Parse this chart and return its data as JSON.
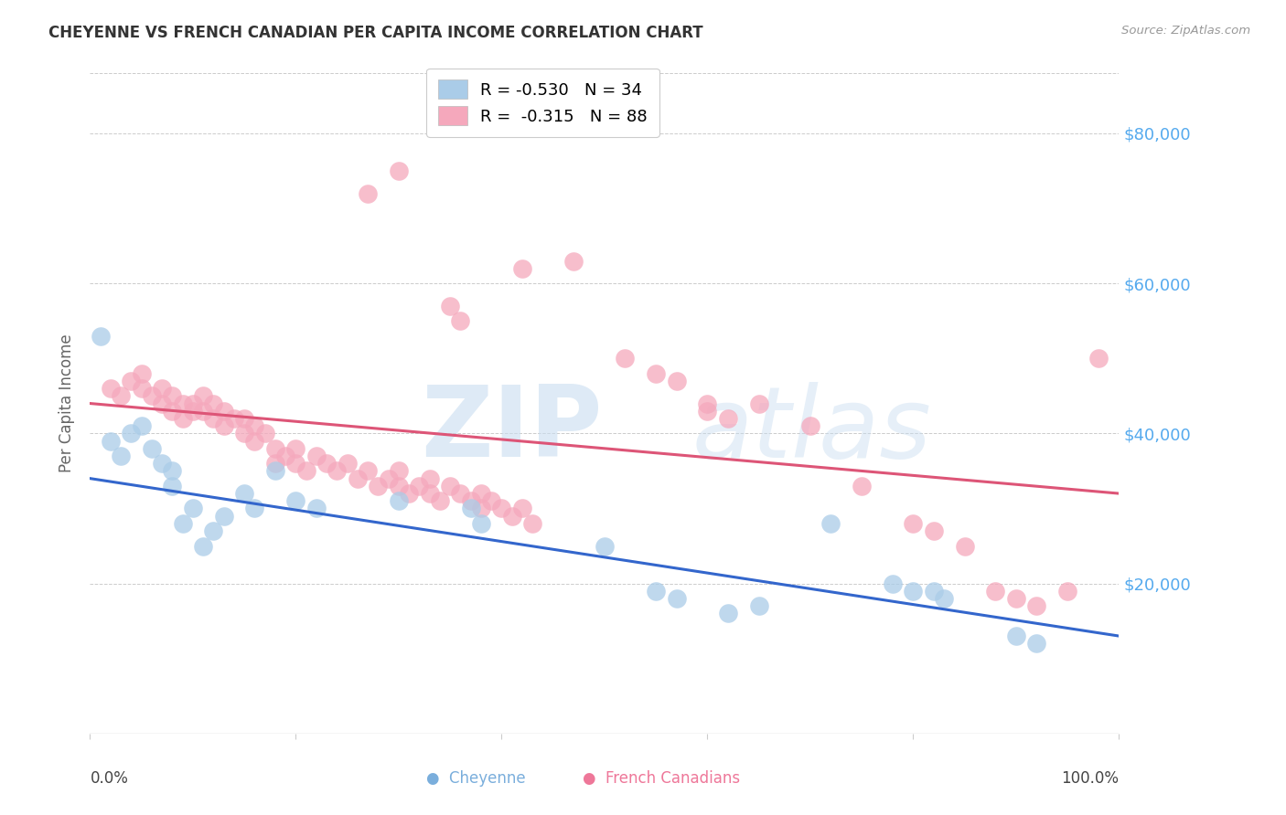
{
  "title": "CHEYENNE VS FRENCH CANADIAN PER CAPITA INCOME CORRELATION CHART",
  "source": "Source: ZipAtlas.com",
  "ylabel": "Per Capita Income",
  "ytick_labels": [
    "$20,000",
    "$40,000",
    "$60,000",
    "$80,000"
  ],
  "ytick_values": [
    20000,
    40000,
    60000,
    80000
  ],
  "ylim": [
    0,
    88000
  ],
  "xlim": [
    0,
    100
  ],
  "cheyenne_color": "#aacce8",
  "french_color": "#f5a8bc",
  "line_blue": "#3366cc",
  "line_pink": "#dd5577",
  "cheyenne_scatter": [
    [
      1,
      53000
    ],
    [
      2,
      39000
    ],
    [
      3,
      37000
    ],
    [
      4,
      40000
    ],
    [
      5,
      41000
    ],
    [
      6,
      38000
    ],
    [
      7,
      36000
    ],
    [
      8,
      33000
    ],
    [
      8,
      35000
    ],
    [
      9,
      28000
    ],
    [
      10,
      30000
    ],
    [
      11,
      25000
    ],
    [
      12,
      27000
    ],
    [
      13,
      29000
    ],
    [
      15,
      32000
    ],
    [
      16,
      30000
    ],
    [
      18,
      35000
    ],
    [
      20,
      31000
    ],
    [
      22,
      30000
    ],
    [
      30,
      31000
    ],
    [
      37,
      30000
    ],
    [
      38,
      28000
    ],
    [
      50,
      25000
    ],
    [
      55,
      19000
    ],
    [
      57,
      18000
    ],
    [
      62,
      16000
    ],
    [
      65,
      17000
    ],
    [
      72,
      28000
    ],
    [
      78,
      20000
    ],
    [
      80,
      19000
    ],
    [
      82,
      19000
    ],
    [
      83,
      18000
    ],
    [
      90,
      13000
    ],
    [
      92,
      12000
    ]
  ],
  "french_scatter": [
    [
      2,
      46000
    ],
    [
      3,
      45000
    ],
    [
      4,
      47000
    ],
    [
      5,
      48000
    ],
    [
      5,
      46000
    ],
    [
      6,
      45000
    ],
    [
      7,
      44000
    ],
    [
      7,
      46000
    ],
    [
      8,
      45000
    ],
    [
      8,
      43000
    ],
    [
      9,
      44000
    ],
    [
      9,
      42000
    ],
    [
      10,
      43000
    ],
    [
      10,
      44000
    ],
    [
      11,
      45000
    ],
    [
      11,
      43000
    ],
    [
      12,
      44000
    ],
    [
      12,
      42000
    ],
    [
      13,
      43000
    ],
    [
      13,
      41000
    ],
    [
      14,
      42000
    ],
    [
      15,
      40000
    ],
    [
      15,
      42000
    ],
    [
      16,
      41000
    ],
    [
      16,
      39000
    ],
    [
      17,
      40000
    ],
    [
      18,
      38000
    ],
    [
      18,
      36000
    ],
    [
      19,
      37000
    ],
    [
      20,
      38000
    ],
    [
      20,
      36000
    ],
    [
      21,
      35000
    ],
    [
      22,
      37000
    ],
    [
      23,
      36000
    ],
    [
      24,
      35000
    ],
    [
      25,
      36000
    ],
    [
      26,
      34000
    ],
    [
      27,
      35000
    ],
    [
      28,
      33000
    ],
    [
      29,
      34000
    ],
    [
      30,
      33000
    ],
    [
      30,
      35000
    ],
    [
      31,
      32000
    ],
    [
      32,
      33000
    ],
    [
      33,
      34000
    ],
    [
      33,
      32000
    ],
    [
      34,
      31000
    ],
    [
      35,
      33000
    ],
    [
      36,
      32000
    ],
    [
      37,
      31000
    ],
    [
      38,
      32000
    ],
    [
      38,
      30000
    ],
    [
      39,
      31000
    ],
    [
      40,
      30000
    ],
    [
      41,
      29000
    ],
    [
      42,
      30000
    ],
    [
      43,
      28000
    ],
    [
      27,
      72000
    ],
    [
      30,
      75000
    ],
    [
      35,
      57000
    ],
    [
      36,
      55000
    ],
    [
      42,
      62000
    ],
    [
      47,
      63000
    ],
    [
      52,
      50000
    ],
    [
      55,
      48000
    ],
    [
      57,
      47000
    ],
    [
      60,
      44000
    ],
    [
      60,
      43000
    ],
    [
      62,
      42000
    ],
    [
      65,
      44000
    ],
    [
      70,
      41000
    ],
    [
      75,
      33000
    ],
    [
      80,
      28000
    ],
    [
      82,
      27000
    ],
    [
      85,
      25000
    ],
    [
      88,
      19000
    ],
    [
      90,
      18000
    ],
    [
      92,
      17000
    ],
    [
      95,
      19000
    ],
    [
      98,
      50000
    ]
  ]
}
